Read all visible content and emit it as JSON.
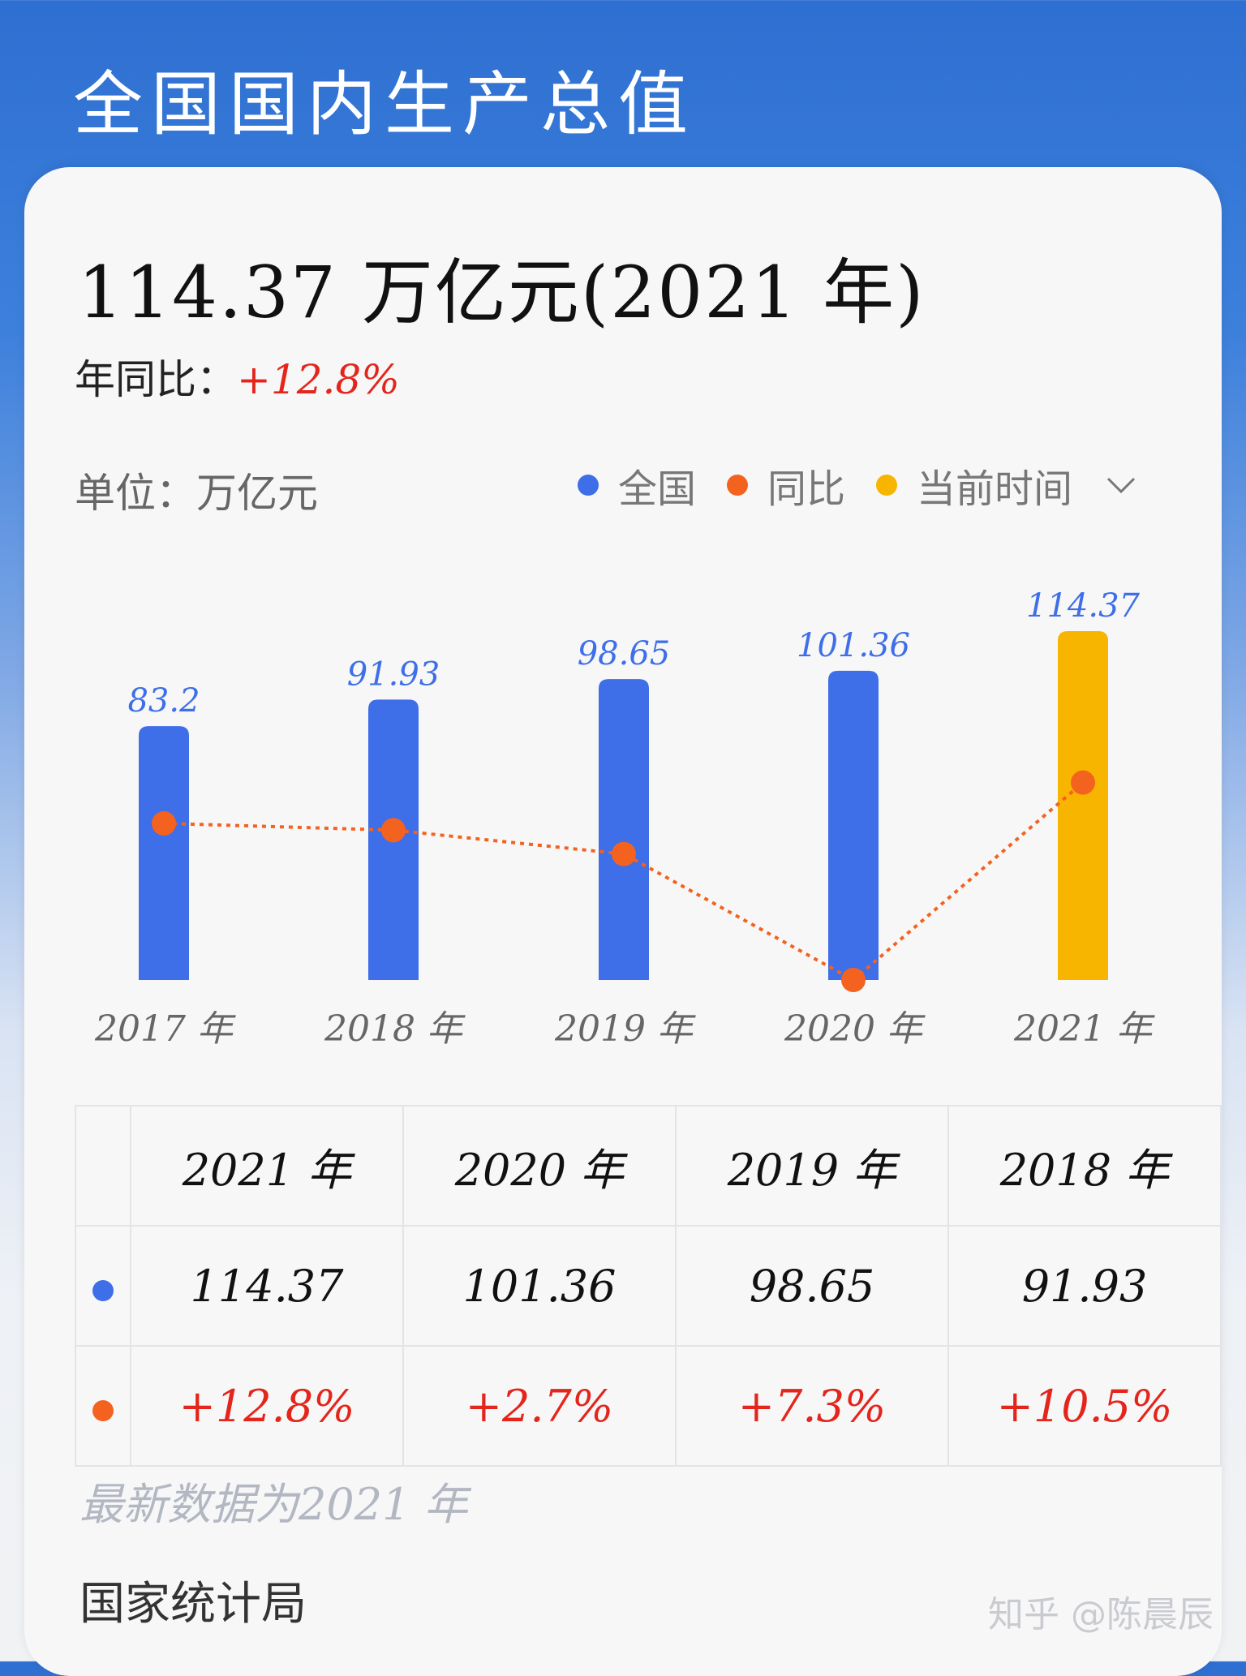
{
  "header": {
    "title": "全国国内生产总值"
  },
  "summary": {
    "headline": "114.37 万亿元(2021 年)",
    "yoy_label": "年同比：",
    "yoy_value": "+12.8%",
    "unit": "单位：万亿元"
  },
  "legend": {
    "items": [
      {
        "label": "全国",
        "color": "#3e6ee8"
      },
      {
        "label": "同比",
        "color": "#f4621f"
      },
      {
        "label": "当前时间",
        "color": "#f7b500"
      }
    ]
  },
  "chart_data": {
    "type": "bar",
    "categories": [
      "2017 年",
      "2018 年",
      "2019 年",
      "2020 年",
      "2021 年"
    ],
    "series": [
      {
        "name": "全国",
        "values": [
          83.2,
          91.93,
          98.65,
          101.36,
          114.37
        ],
        "labels": [
          "83.2",
          "91.93",
          "98.65",
          "101.36",
          "114.37"
        ],
        "color": "#3e6ee8",
        "highlight_color": "#f7b500",
        "highlight_index": 4
      },
      {
        "name": "同比",
        "type": "line",
        "values": [
          6.9,
          6.7,
          6.0,
          2.3,
          8.1
        ],
        "color": "#f4621f",
        "style": "dotted"
      }
    ],
    "ylim": [
      0,
      125
    ],
    "line_ylim": [
      2.3,
      13.5
    ],
    "grid": false
  },
  "table": {
    "headers": [
      "2021 年",
      "2020 年",
      "2019 年",
      "2018 年"
    ],
    "rows": [
      {
        "marker_color": "#3e6ee8",
        "values": [
          "114.37",
          "101.36",
          "98.65",
          "91.93"
        ]
      },
      {
        "marker_color": "#f4621f",
        "values": [
          "+12.8%",
          "+2.7%",
          "+7.3%",
          "+10.5%"
        ]
      }
    ]
  },
  "footnote": "最新数据为2021 年",
  "source": "国家统计局",
  "watermark": "知乎 @陈晨辰"
}
